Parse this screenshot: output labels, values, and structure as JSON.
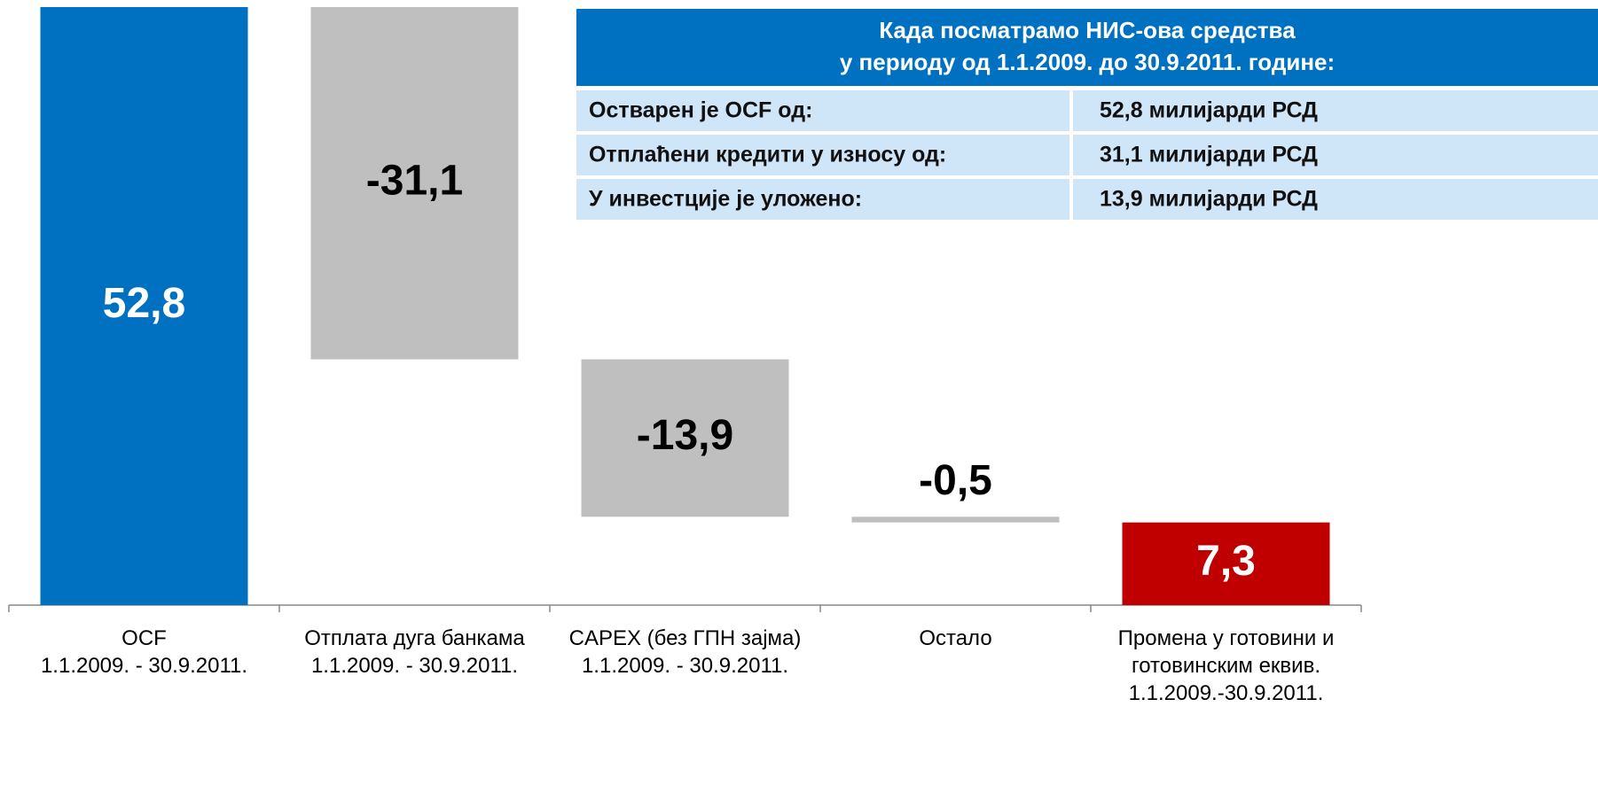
{
  "chart_data": {
    "type": "waterfall",
    "categories": [
      "OCF\n1.1.2009. - 30.9.2011.",
      "Отплата дуга банкама\n1.1.2009. - 30.9.2011.",
      "CAPEX (без ГПН зајма)\n1.1.2009. - 30.9.2011.",
      "Остало",
      "Промена у готовини и\nготовинским еквив.\n1.1.2009.-30.9.2011."
    ],
    "values": [
      52.8,
      -31.1,
      -13.9,
      -0.5,
      7.3
    ],
    "value_labels": [
      "52,8",
      "-31,1",
      "-13,9",
      "-0,5",
      "7,3"
    ],
    "colors": [
      "#0070c0",
      "#bfbfbf",
      "#bfbfbf",
      "#bfbfbf",
      "#c00000"
    ],
    "table": {
      "title": [
        "Када посматрамо НИС-ова средства",
        "у периоду од 1.1.2009. до 30.9.2011. године:"
      ],
      "rows": [
        [
          "Остварен је OCF од:",
          "52,8 милијарди РСД"
        ],
        [
          "Отплаћени кредити у износу од:",
          "31,1 милијарди РСД"
        ],
        [
          "У инвестције је уложено:",
          "13,9 милијарди РСД"
        ]
      ]
    }
  }
}
